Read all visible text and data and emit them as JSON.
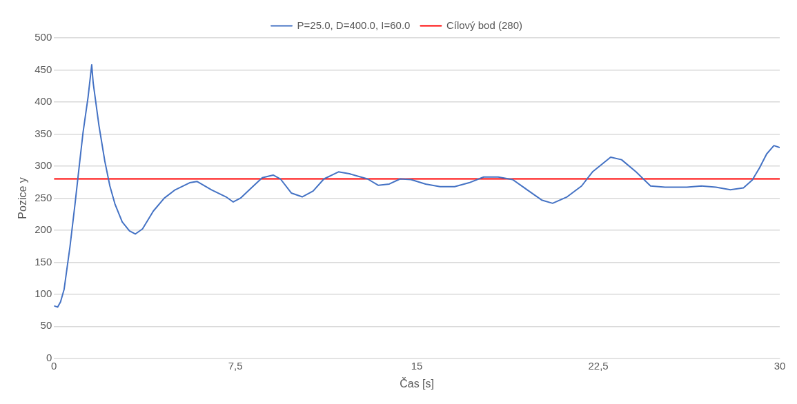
{
  "chart_data": {
    "type": "line",
    "xlabel": "Čas [s]",
    "ylabel": "Pozice y",
    "xlim": [
      0,
      30
    ],
    "xticks": [
      0,
      {
        "value": 7.5,
        "label": "7,5"
      },
      15,
      {
        "value": 22.5,
        "label": "22,5"
      },
      30
    ],
    "ylim": [
      0,
      500
    ],
    "yticks": [
      0,
      50,
      100,
      150,
      200,
      250,
      300,
      350,
      400,
      450,
      500
    ],
    "grid": "y",
    "legend": "top",
    "marker": "none",
    "line_style": "solid",
    "series": [
      {
        "name": "P=25.0, D=400.0, I=60.0",
        "color": "#4472c4",
        "x": [
          0,
          0.15,
          0.27,
          0.42,
          0.66,
          0.87,
          1.05,
          1.2,
          1.41,
          1.56,
          1.62,
          1.86,
          2.1,
          2.31,
          2.52,
          2.82,
          3.12,
          3.36,
          3.66,
          4.11,
          4.56,
          5.01,
          5.61,
          5.91,
          6.51,
          7.11,
          7.41,
          7.71,
          8.16,
          8.61,
          9.06,
          9.36,
          9.81,
          10.26,
          10.71,
          11.16,
          11.76,
          12.21,
          12.96,
          13.41,
          13.86,
          14.31,
          14.76,
          15.36,
          15.96,
          16.56,
          17.16,
          17.76,
          18.36,
          18.96,
          19.56,
          20.16,
          20.61,
          21.21,
          21.81,
          22.26,
          23.01,
          23.46,
          24.06,
          24.66,
          25.26,
          26.16,
          26.76,
          27.36,
          27.96,
          28.5,
          28.86,
          29.16,
          29.46,
          29.76,
          30
        ],
        "values": [
          82,
          80,
          88,
          108,
          174,
          241,
          302,
          352,
          408,
          458,
          430,
          363,
          308,
          269,
          241,
          213,
          199,
          194,
          202,
          230,
          250,
          263,
          274,
          276,
          263,
          252,
          244,
          250,
          266,
          282,
          286,
          280,
          258,
          252,
          261,
          280,
          291,
          288,
          280,
          270,
          272,
          280,
          279,
          272,
          268,
          268,
          274,
          283,
          283,
          279,
          263,
          247,
          242,
          252,
          269,
          291,
          314,
          310,
          291,
          269,
          267,
          267,
          269,
          267,
          263,
          266,
          278,
          297,
          319,
          332,
          329
        ]
      },
      {
        "name": "Cílový bod (280)",
        "color": "#ff0000",
        "x": [
          0,
          30
        ],
        "values": [
          280,
          280
        ]
      }
    ]
  }
}
